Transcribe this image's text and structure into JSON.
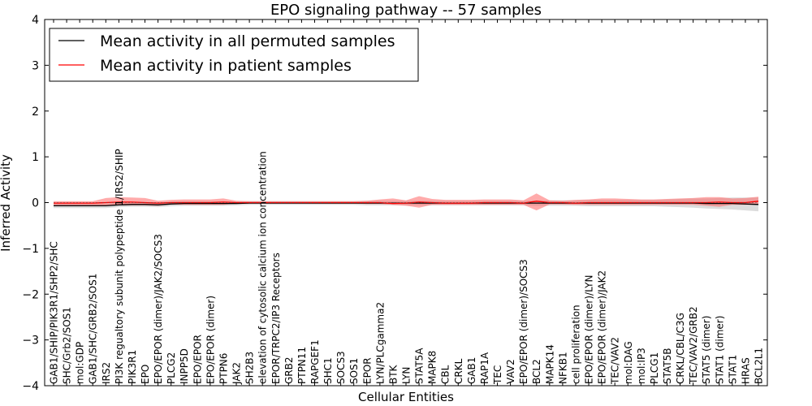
{
  "chart_data": {
    "type": "line",
    "title": "EPO signaling pathway -- 57 samples",
    "xlabel": "Cellular Entities",
    "ylabel": "Inferred Activity",
    "ylim": [
      -4,
      4
    ],
    "yticks": [
      "−4",
      "−3",
      "−2",
      "−1",
      "0",
      "1",
      "2",
      "3",
      "4"
    ],
    "legend_position": "top-left",
    "colors": {
      "permuted": "#000000",
      "patient": "#ff0000",
      "permuted_band": "#bfbfbf",
      "patient_band": "#ff6666"
    },
    "categories": [
      "GAB1/SHIP/PIK3R1/SHP2/SHC",
      "SHC/Grb2/SOS1",
      "mol:GDP",
      "GAB1/SHC/GRB2/SOS1",
      "IRS2",
      "PI3K regualtory subunit polypeptide 1/IRS2/SHIP",
      "PIK3R1",
      "EPO",
      "EPO/EPOR (dimer)/JAK2/SOCS3",
      "PLCG2",
      "INPP5D",
      "EPO/EPOR",
      "EPO/EPOR (dimer)",
      "PTPN6",
      "JAK2",
      "SH2B3",
      "elevation of cytosolic calcium ion concentration",
      "EPOR/TRPC2/IP3 Receptors",
      "GRB2",
      "PTPN11",
      "RAPGEF1",
      "SHC1",
      "SOCS3",
      "SOS1",
      "EPOR",
      "LYN/PLCgamma2",
      "BTK",
      "LYN",
      "STAT5A",
      "MAPK8",
      "CBL",
      "CRKL",
      "GAB1",
      "RAP1A",
      "TEC",
      "VAV2",
      "EPO/EPOR (dimer)/SOCS3",
      "BCL2",
      "MAPK14",
      "NFKB1",
      "cell proliferation",
      "EPO/EPOR (dimer)/LYN",
      "EPO/EPOR (dimer)/JAK2",
      "TEC/VAV2",
      "mol:DAG",
      "mol:IP3",
      "PLCG1",
      "STAT5B",
      "CRKL/CBL/C3G",
      "TEC/VAV2/GRB2",
      "STAT5 (dimer)",
      "STAT1 (dimer)",
      "STAT1",
      "HRAS",
      "BCL2L1"
    ],
    "series": [
      {
        "name": "Mean activity in all permuted samples",
        "values": [
          -0.07,
          -0.07,
          -0.07,
          -0.07,
          -0.07,
          -0.05,
          -0.04,
          -0.04,
          -0.05,
          -0.03,
          -0.02,
          -0.02,
          -0.02,
          -0.02,
          -0.02,
          -0.01,
          -0.01,
          -0.01,
          -0.01,
          -0.01,
          -0.01,
          -0.01,
          -0.01,
          -0.01,
          -0.01,
          -0.01,
          -0.01,
          -0.01,
          -0.01,
          -0.01,
          -0.01,
          -0.01,
          -0.01,
          -0.01,
          -0.01,
          -0.01,
          -0.01,
          -0.01,
          -0.01,
          -0.01,
          -0.01,
          -0.01,
          -0.01,
          -0.01,
          -0.01,
          -0.01,
          -0.01,
          -0.01,
          -0.01,
          -0.01,
          -0.02,
          -0.02,
          -0.02,
          -0.03,
          -0.04
        ],
        "lower": [
          -0.12,
          -0.12,
          -0.12,
          -0.12,
          -0.12,
          -0.1,
          -0.09,
          -0.09,
          -0.1,
          -0.08,
          -0.07,
          -0.07,
          -0.07,
          -0.07,
          -0.06,
          -0.05,
          -0.05,
          -0.05,
          -0.05,
          -0.05,
          -0.05,
          -0.05,
          -0.05,
          -0.05,
          -0.06,
          -0.06,
          -0.06,
          -0.06,
          -0.06,
          -0.06,
          -0.06,
          -0.06,
          -0.06,
          -0.06,
          -0.06,
          -0.06,
          -0.06,
          -0.07,
          -0.07,
          -0.07,
          -0.07,
          -0.08,
          -0.08,
          -0.08,
          -0.08,
          -0.08,
          -0.08,
          -0.09,
          -0.1,
          -0.11,
          -0.13,
          -0.14,
          -0.15,
          -0.17,
          -0.19
        ],
        "upper": [
          -0.02,
          -0.02,
          -0.02,
          -0.02,
          -0.02,
          0.0,
          0.01,
          0.01,
          0.0,
          0.02,
          0.03,
          0.03,
          0.03,
          0.03,
          0.02,
          0.03,
          0.03,
          0.03,
          0.03,
          0.03,
          0.03,
          0.03,
          0.03,
          0.03,
          0.04,
          0.04,
          0.04,
          0.04,
          0.04,
          0.04,
          0.04,
          0.04,
          0.04,
          0.04,
          0.04,
          0.04,
          0.04,
          0.05,
          0.05,
          0.05,
          0.05,
          0.06,
          0.06,
          0.06,
          0.06,
          0.06,
          0.06,
          0.07,
          0.08,
          0.09,
          0.09,
          0.1,
          0.11,
          0.11,
          0.11
        ]
      },
      {
        "name": "Mean activity in patient samples",
        "values": [
          -0.01,
          -0.01,
          -0.01,
          -0.01,
          0.0,
          0.01,
          0.01,
          0.0,
          -0.01,
          0.0,
          0.0,
          0.0,
          0.0,
          0.01,
          0.0,
          0.0,
          0.0,
          0.0,
          0.0,
          0.0,
          0.0,
          0.0,
          0.0,
          0.0,
          0.0,
          0.0,
          -0.02,
          -0.01,
          0.01,
          0.0,
          -0.01,
          -0.01,
          -0.01,
          0.0,
          0.0,
          0.0,
          -0.01,
          0.03,
          0.0,
          0.0,
          -0.01,
          0.0,
          0.0,
          0.0,
          0.0,
          0.0,
          0.0,
          0.0,
          0.0,
          0.0,
          0.0,
          0.01,
          0.0,
          0.0,
          0.03
        ],
        "lower": [
          -0.06,
          -0.06,
          -0.06,
          -0.06,
          -0.06,
          -0.06,
          -0.06,
          -0.06,
          -0.07,
          -0.04,
          -0.05,
          -0.05,
          -0.05,
          -0.05,
          -0.02,
          -0.02,
          -0.02,
          -0.02,
          -0.02,
          -0.02,
          -0.02,
          -0.02,
          -0.02,
          -0.02,
          -0.03,
          -0.03,
          -0.05,
          -0.07,
          -0.11,
          -0.05,
          -0.05,
          -0.05,
          -0.05,
          -0.05,
          -0.05,
          -0.05,
          -0.05,
          -0.17,
          -0.04,
          -0.04,
          -0.05,
          -0.05,
          -0.05,
          -0.05,
          -0.05,
          -0.05,
          -0.05,
          -0.05,
          -0.05,
          -0.05,
          -0.07,
          -0.09,
          -0.05,
          -0.05,
          -0.05
        ],
        "upper": [
          0.03,
          0.03,
          0.03,
          0.03,
          0.1,
          0.12,
          0.11,
          0.1,
          0.04,
          0.06,
          0.07,
          0.07,
          0.07,
          0.09,
          0.04,
          0.03,
          0.03,
          0.03,
          0.03,
          0.03,
          0.03,
          0.03,
          0.03,
          0.03,
          0.04,
          0.07,
          0.09,
          0.05,
          0.14,
          0.08,
          0.06,
          0.06,
          0.06,
          0.07,
          0.07,
          0.07,
          0.05,
          0.2,
          0.05,
          0.04,
          0.06,
          0.07,
          0.09,
          0.09,
          0.08,
          0.07,
          0.07,
          0.08,
          0.09,
          0.1,
          0.12,
          0.12,
          0.09,
          0.1,
          0.13
        ]
      }
    ]
  }
}
